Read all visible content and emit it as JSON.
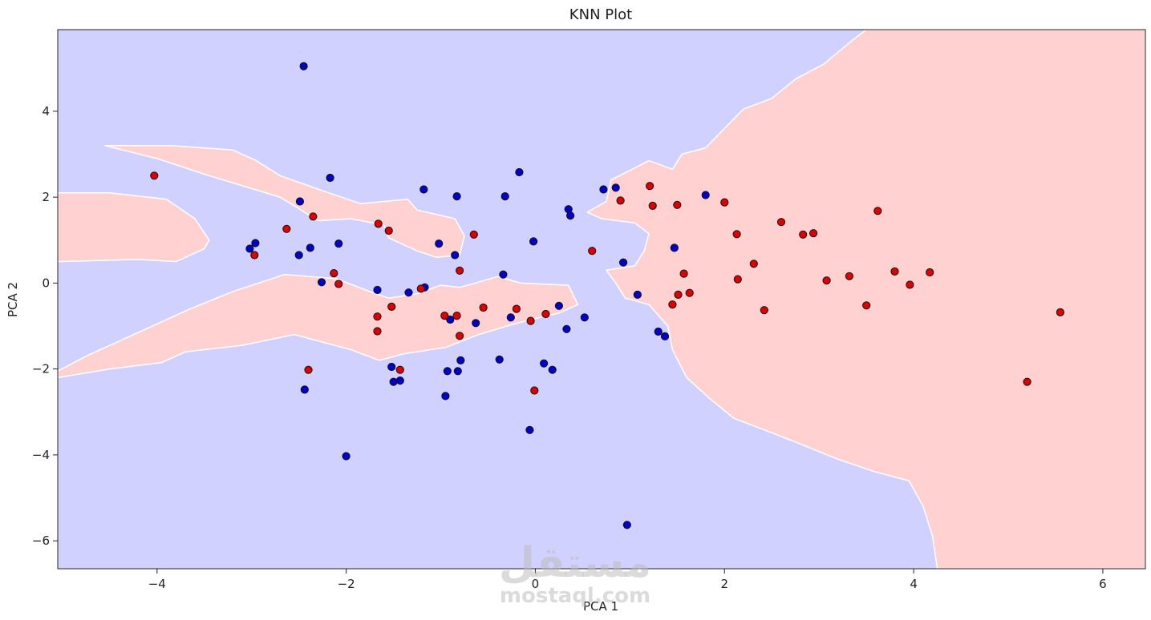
{
  "chart_data": {
    "type": "scatter",
    "title": "KNN  Plot",
    "xlabel": "PCA 1",
    "ylabel": "PCA 2",
    "xlim": [
      -5.05,
      6.45
    ],
    "ylim": [
      -6.65,
      5.9
    ],
    "xticks": [
      -4,
      -2,
      0,
      2,
      4,
      6
    ],
    "yticks": [
      -6,
      -4,
      -2,
      0,
      2,
      4
    ],
    "grid": false,
    "colors": {
      "class_blue_region": "#d1d1ff",
      "class_red_region": "#ffd1d1",
      "class_blue_point": "#0000cc",
      "class_red_point": "#dd0000",
      "point_edge": "#111111"
    },
    "decision_regions": {
      "red": [
        [
          [
            4.25,
            -6.65
          ],
          [
            4.2,
            -5.9
          ],
          [
            4.1,
            -5.2
          ],
          [
            3.95,
            -4.6
          ],
          [
            3.6,
            -4.4
          ],
          [
            3.2,
            -4.1
          ],
          [
            2.75,
            -3.7
          ],
          [
            2.4,
            -3.4
          ],
          [
            2.1,
            -3.15
          ],
          [
            1.85,
            -2.7
          ],
          [
            1.6,
            -2.2
          ],
          [
            1.45,
            -1.55
          ],
          [
            1.4,
            -1.0
          ],
          [
            1.2,
            -0.5
          ],
          [
            0.95,
            -0.35
          ],
          [
            0.85,
            0.0
          ],
          [
            0.75,
            0.3
          ],
          [
            1.05,
            0.4
          ],
          [
            1.15,
            0.75
          ],
          [
            1.2,
            1.15
          ],
          [
            1.05,
            1.4
          ],
          [
            0.7,
            1.5
          ],
          [
            0.55,
            1.65
          ],
          [
            0.75,
            1.9
          ],
          [
            0.8,
            2.4
          ],
          [
            1.2,
            2.85
          ],
          [
            1.45,
            2.65
          ],
          [
            1.55,
            3.0
          ],
          [
            1.8,
            3.15
          ],
          [
            2.0,
            3.6
          ],
          [
            2.2,
            4.05
          ],
          [
            2.5,
            4.3
          ],
          [
            2.75,
            4.75
          ],
          [
            3.05,
            5.1
          ],
          [
            3.35,
            5.65
          ],
          [
            3.5,
            5.9
          ],
          [
            6.45,
            5.9
          ],
          [
            6.45,
            -6.65
          ]
        ],
        [
          [
            -5.05,
            0.5
          ],
          [
            -4.2,
            0.55
          ],
          [
            -3.8,
            0.5
          ],
          [
            -3.5,
            0.8
          ],
          [
            -3.45,
            1.0
          ],
          [
            -3.6,
            1.5
          ],
          [
            -3.9,
            1.95
          ],
          [
            -4.5,
            2.1
          ],
          [
            -5.05,
            2.1
          ]
        ],
        [
          [
            -4.55,
            3.2
          ],
          [
            -3.85,
            3.2
          ],
          [
            -3.2,
            3.1
          ],
          [
            -2.95,
            2.85
          ],
          [
            -2.7,
            2.5
          ],
          [
            -2.25,
            2.15
          ],
          [
            -1.85,
            1.85
          ],
          [
            -1.35,
            1.95
          ],
          [
            -1.25,
            1.7
          ],
          [
            -0.85,
            1.5
          ],
          [
            -0.75,
            1.1
          ],
          [
            -0.8,
            0.65
          ],
          [
            -1.05,
            0.6
          ],
          [
            -1.25,
            0.75
          ],
          [
            -1.55,
            1.05
          ],
          [
            -1.6,
            1.35
          ],
          [
            -1.95,
            1.5
          ],
          [
            -2.3,
            1.45
          ],
          [
            -2.55,
            1.8
          ],
          [
            -2.7,
            2.0
          ],
          [
            -3.45,
            2.5
          ],
          [
            -4.0,
            2.9
          ]
        ],
        [
          [
            -5.05,
            -2.2
          ],
          [
            -4.5,
            -2.0
          ],
          [
            -3.95,
            -1.85
          ],
          [
            -3.7,
            -1.6
          ],
          [
            -3.1,
            -1.45
          ],
          [
            -2.55,
            -1.2
          ],
          [
            -1.95,
            -1.55
          ],
          [
            -1.65,
            -1.8
          ],
          [
            -1.4,
            -1.65
          ],
          [
            -0.95,
            -1.5
          ],
          [
            -0.6,
            -1.2
          ],
          [
            -0.3,
            -1.0
          ],
          [
            -0.05,
            -0.85
          ],
          [
            0.25,
            -0.7
          ],
          [
            0.45,
            -0.5
          ],
          [
            0.35,
            -0.05
          ],
          [
            -0.15,
            0.0
          ],
          [
            -0.4,
            0.15
          ],
          [
            -0.8,
            -0.1
          ],
          [
            -1.0,
            -0.05
          ],
          [
            -1.25,
            -0.25
          ],
          [
            -1.55,
            -0.35
          ],
          [
            -1.75,
            -0.2
          ],
          [
            -2.1,
            0.1
          ],
          [
            -2.65,
            0.2
          ],
          [
            -3.2,
            -0.2
          ],
          [
            -3.65,
            -0.6
          ],
          [
            -4.2,
            -1.15
          ],
          [
            -4.75,
            -1.7
          ],
          [
            -5.05,
            -2.05
          ]
        ]
      ]
    },
    "series": [
      {
        "name": "",
        "color": "#0000cc",
        "points": [
          [
            -2.45,
            5.05
          ],
          [
            -0.17,
            2.58
          ],
          [
            -2.17,
            2.45
          ],
          [
            -1.18,
            2.18
          ],
          [
            -0.83,
            2.02
          ],
          [
            -0.32,
            2.02
          ],
          [
            1.8,
            2.05
          ],
          [
            -2.49,
            1.9
          ],
          [
            0.85,
            2.22
          ],
          [
            0.72,
            2.18
          ],
          [
            0.35,
            1.72
          ],
          [
            0.37,
            1.57
          ],
          [
            -0.02,
            0.97
          ],
          [
            -1.02,
            0.92
          ],
          [
            -2.08,
            0.92
          ],
          [
            -2.96,
            0.93
          ],
          [
            -3.02,
            0.8
          ],
          [
            -2.38,
            0.82
          ],
          [
            -2.5,
            0.65
          ],
          [
            -0.85,
            0.65
          ],
          [
            1.47,
            0.82
          ],
          [
            -0.34,
            0.2
          ],
          [
            0.93,
            0.48
          ],
          [
            1.08,
            -0.27
          ],
          [
            -2.26,
            0.02
          ],
          [
            -1.67,
            -0.16
          ],
          [
            -1.17,
            -0.1
          ],
          [
            -1.34,
            -0.22
          ],
          [
            0.25,
            -0.53
          ],
          [
            0.52,
            -0.8
          ],
          [
            -0.26,
            -0.8
          ],
          [
            0.33,
            -1.07
          ],
          [
            -0.63,
            -0.93
          ],
          [
            -0.9,
            -0.85
          ],
          [
            1.3,
            -1.13
          ],
          [
            1.37,
            -1.24
          ],
          [
            -0.38,
            -1.78
          ],
          [
            -0.79,
            -1.8
          ],
          [
            0.09,
            -1.87
          ],
          [
            0.18,
            -2.02
          ],
          [
            -0.93,
            -2.05
          ],
          [
            -0.82,
            -2.05
          ],
          [
            -1.52,
            -1.95
          ],
          [
            -1.5,
            -2.3
          ],
          [
            -1.43,
            -2.27
          ],
          [
            -2.44,
            -2.48
          ],
          [
            -0.95,
            -2.63
          ],
          [
            -0.06,
            -3.42
          ],
          [
            -2.0,
            -4.03
          ],
          [
            0.97,
            -5.63
          ]
        ]
      },
      {
        "name": "",
        "color": "#dd0000",
        "points": [
          [
            -4.03,
            2.5
          ],
          [
            1.21,
            2.26
          ],
          [
            2.0,
            1.88
          ],
          [
            0.9,
            1.92
          ],
          [
            1.24,
            1.8
          ],
          [
            1.5,
            1.82
          ],
          [
            3.62,
            1.68
          ],
          [
            2.6,
            1.42
          ],
          [
            -2.35,
            1.55
          ],
          [
            -1.66,
            1.38
          ],
          [
            -1.55,
            1.22
          ],
          [
            -2.63,
            1.26
          ],
          [
            -0.65,
            1.13
          ],
          [
            2.13,
            1.14
          ],
          [
            2.83,
            1.13
          ],
          [
            2.94,
            1.16
          ],
          [
            0.6,
            0.75
          ],
          [
            -2.97,
            0.65
          ],
          [
            2.31,
            0.45
          ],
          [
            -2.13,
            0.23
          ],
          [
            -0.8,
            0.29
          ],
          [
            1.57,
            0.22
          ],
          [
            3.8,
            0.27
          ],
          [
            4.17,
            0.25
          ],
          [
            2.14,
            0.09
          ],
          [
            3.08,
            0.06
          ],
          [
            3.32,
            0.16
          ],
          [
            3.96,
            -0.04
          ],
          [
            -2.08,
            -0.02
          ],
          [
            -1.21,
            -0.13
          ],
          [
            1.51,
            -0.27
          ],
          [
            1.63,
            -0.23
          ],
          [
            -1.52,
            -0.55
          ],
          [
            -0.55,
            -0.57
          ],
          [
            -0.2,
            -0.6
          ],
          [
            1.45,
            -0.5
          ],
          [
            3.5,
            -0.52
          ],
          [
            2.42,
            -0.63
          ],
          [
            5.55,
            -0.68
          ],
          [
            -1.67,
            -0.78
          ],
          [
            -0.96,
            -0.76
          ],
          [
            -0.83,
            -0.76
          ],
          [
            0.11,
            -0.72
          ],
          [
            -0.05,
            -0.88
          ],
          [
            -1.67,
            -1.12
          ],
          [
            -0.8,
            -1.23
          ],
          [
            -2.4,
            -2.02
          ],
          [
            -1.43,
            -2.02
          ],
          [
            5.2,
            -2.3
          ],
          [
            -0.01,
            -2.5
          ]
        ]
      }
    ]
  },
  "watermark": {
    "arabic": "مستقل",
    "latin": "mostaql.com"
  }
}
